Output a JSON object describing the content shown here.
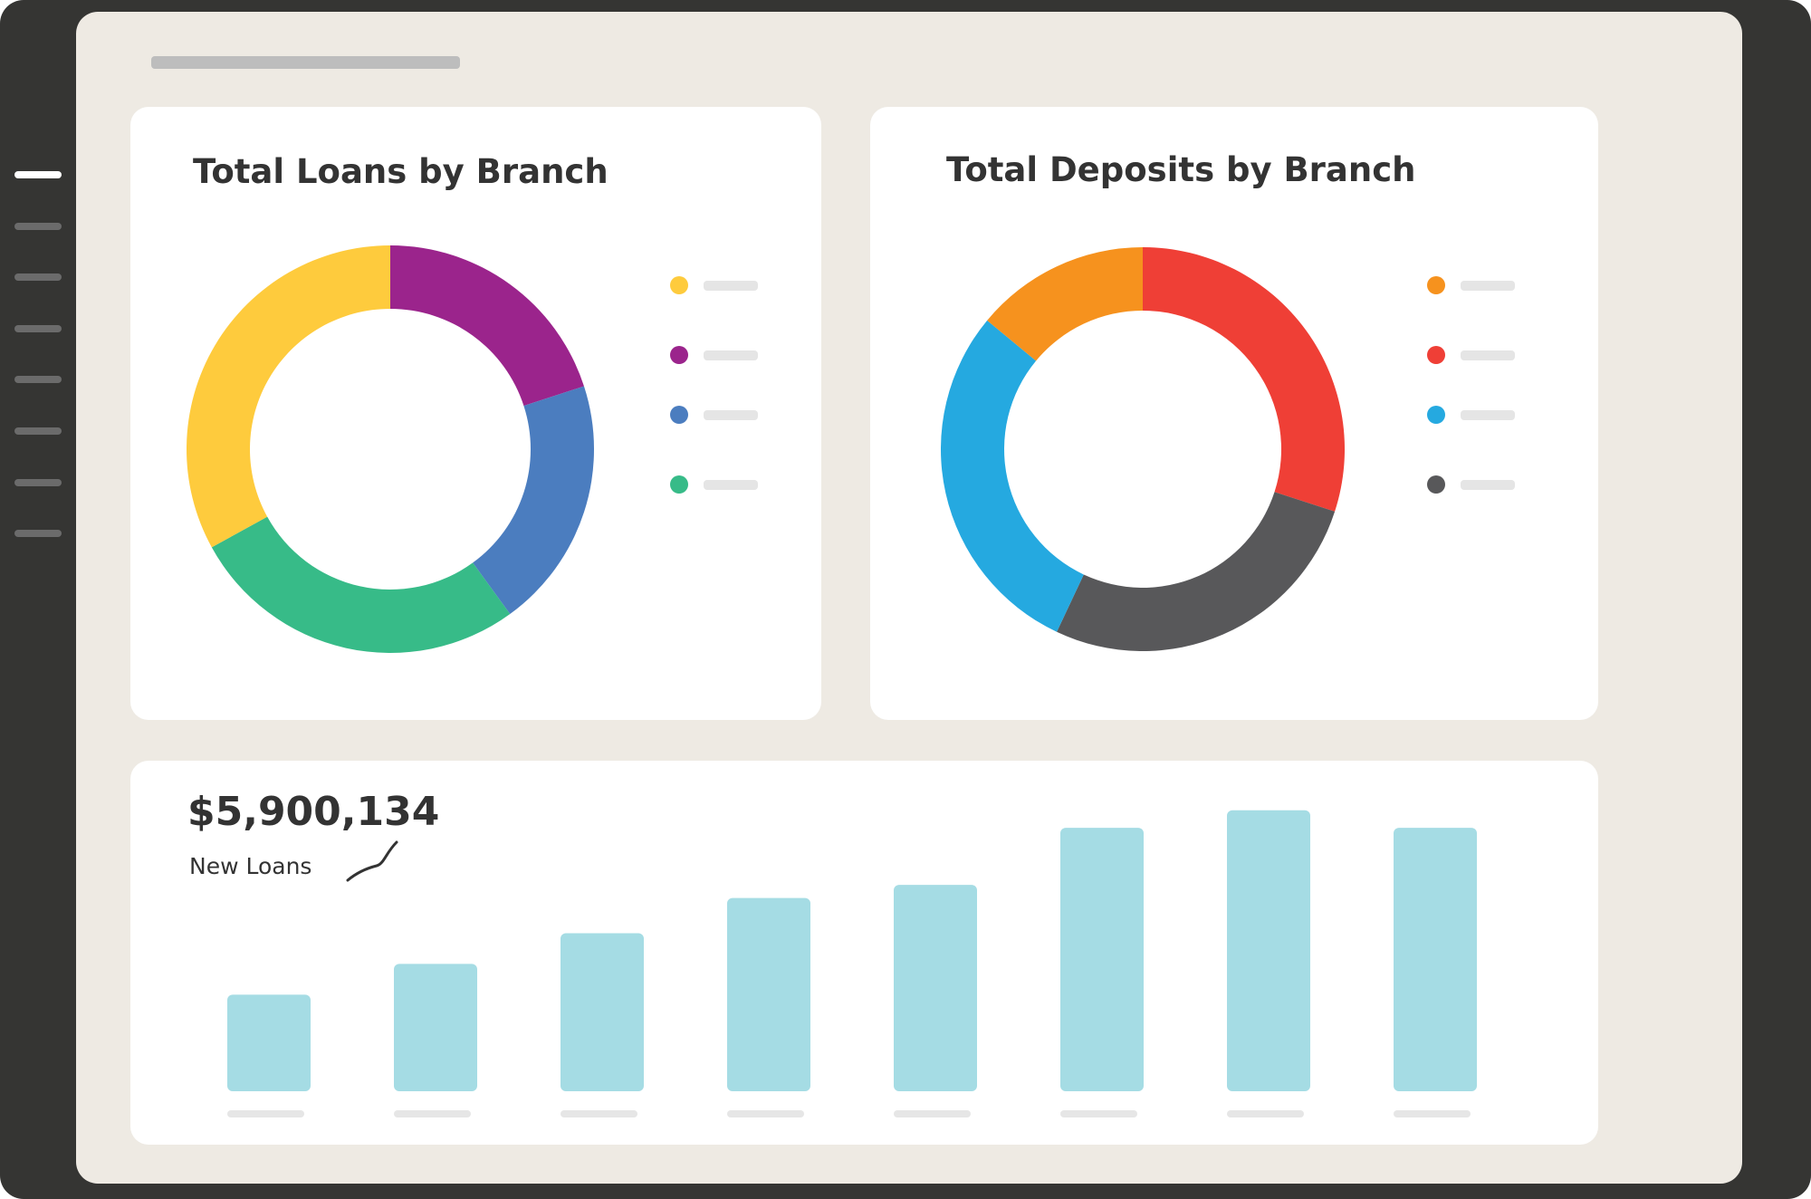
{
  "sidebar": {
    "items": [
      {
        "icon": "menu-line",
        "active": true
      },
      {
        "icon": "menu-line",
        "active": false
      },
      {
        "icon": "menu-line",
        "active": false
      },
      {
        "icon": "menu-line",
        "active": false
      },
      {
        "icon": "menu-line",
        "active": false
      },
      {
        "icon": "menu-line",
        "active": false
      },
      {
        "icon": "menu-line",
        "active": false
      },
      {
        "icon": "menu-line",
        "active": false
      }
    ]
  },
  "loans_card": {
    "title": "Total Loans by Branch"
  },
  "deposits_card": {
    "title": "Total Deposits by Branch"
  },
  "new_loans": {
    "value": "$5,900,134",
    "label": "New Loans",
    "trend_icon": "trend-up-icon"
  },
  "colors": {
    "screen_bg": "#eeeae3",
    "frame": "#353533",
    "bar": "#a5dce4"
  },
  "chart_data": [
    {
      "type": "pie",
      "title": "Total Loans by Branch",
      "slices": [
        {
          "value": 20,
          "color": "#9b248c"
        },
        {
          "value": 20,
          "color": "#4b7dbf"
        },
        {
          "value": 27,
          "color": "#37bb88"
        },
        {
          "value": 33,
          "color": "#fecb3d"
        }
      ],
      "legend_colors": [
        "#fecb3d",
        "#9b248c",
        "#4b7dbf",
        "#37bb88"
      ]
    },
    {
      "type": "pie",
      "title": "Total Deposits by Branch",
      "slices": [
        {
          "value": 30,
          "color": "#ef3f36"
        },
        {
          "value": 27,
          "color": "#58585a"
        },
        {
          "value": 29,
          "color": "#25a9e0"
        },
        {
          "value": 14,
          "color": "#f6921e"
        }
      ],
      "legend_colors": [
        "#f6921e",
        "#ef3f36",
        "#25a9e0",
        "#58585a"
      ]
    },
    {
      "type": "bar",
      "values": [
        11,
        14.5,
        18,
        22,
        23.5,
        30,
        32,
        30
      ],
      "ylim": [
        0,
        33
      ]
    }
  ]
}
